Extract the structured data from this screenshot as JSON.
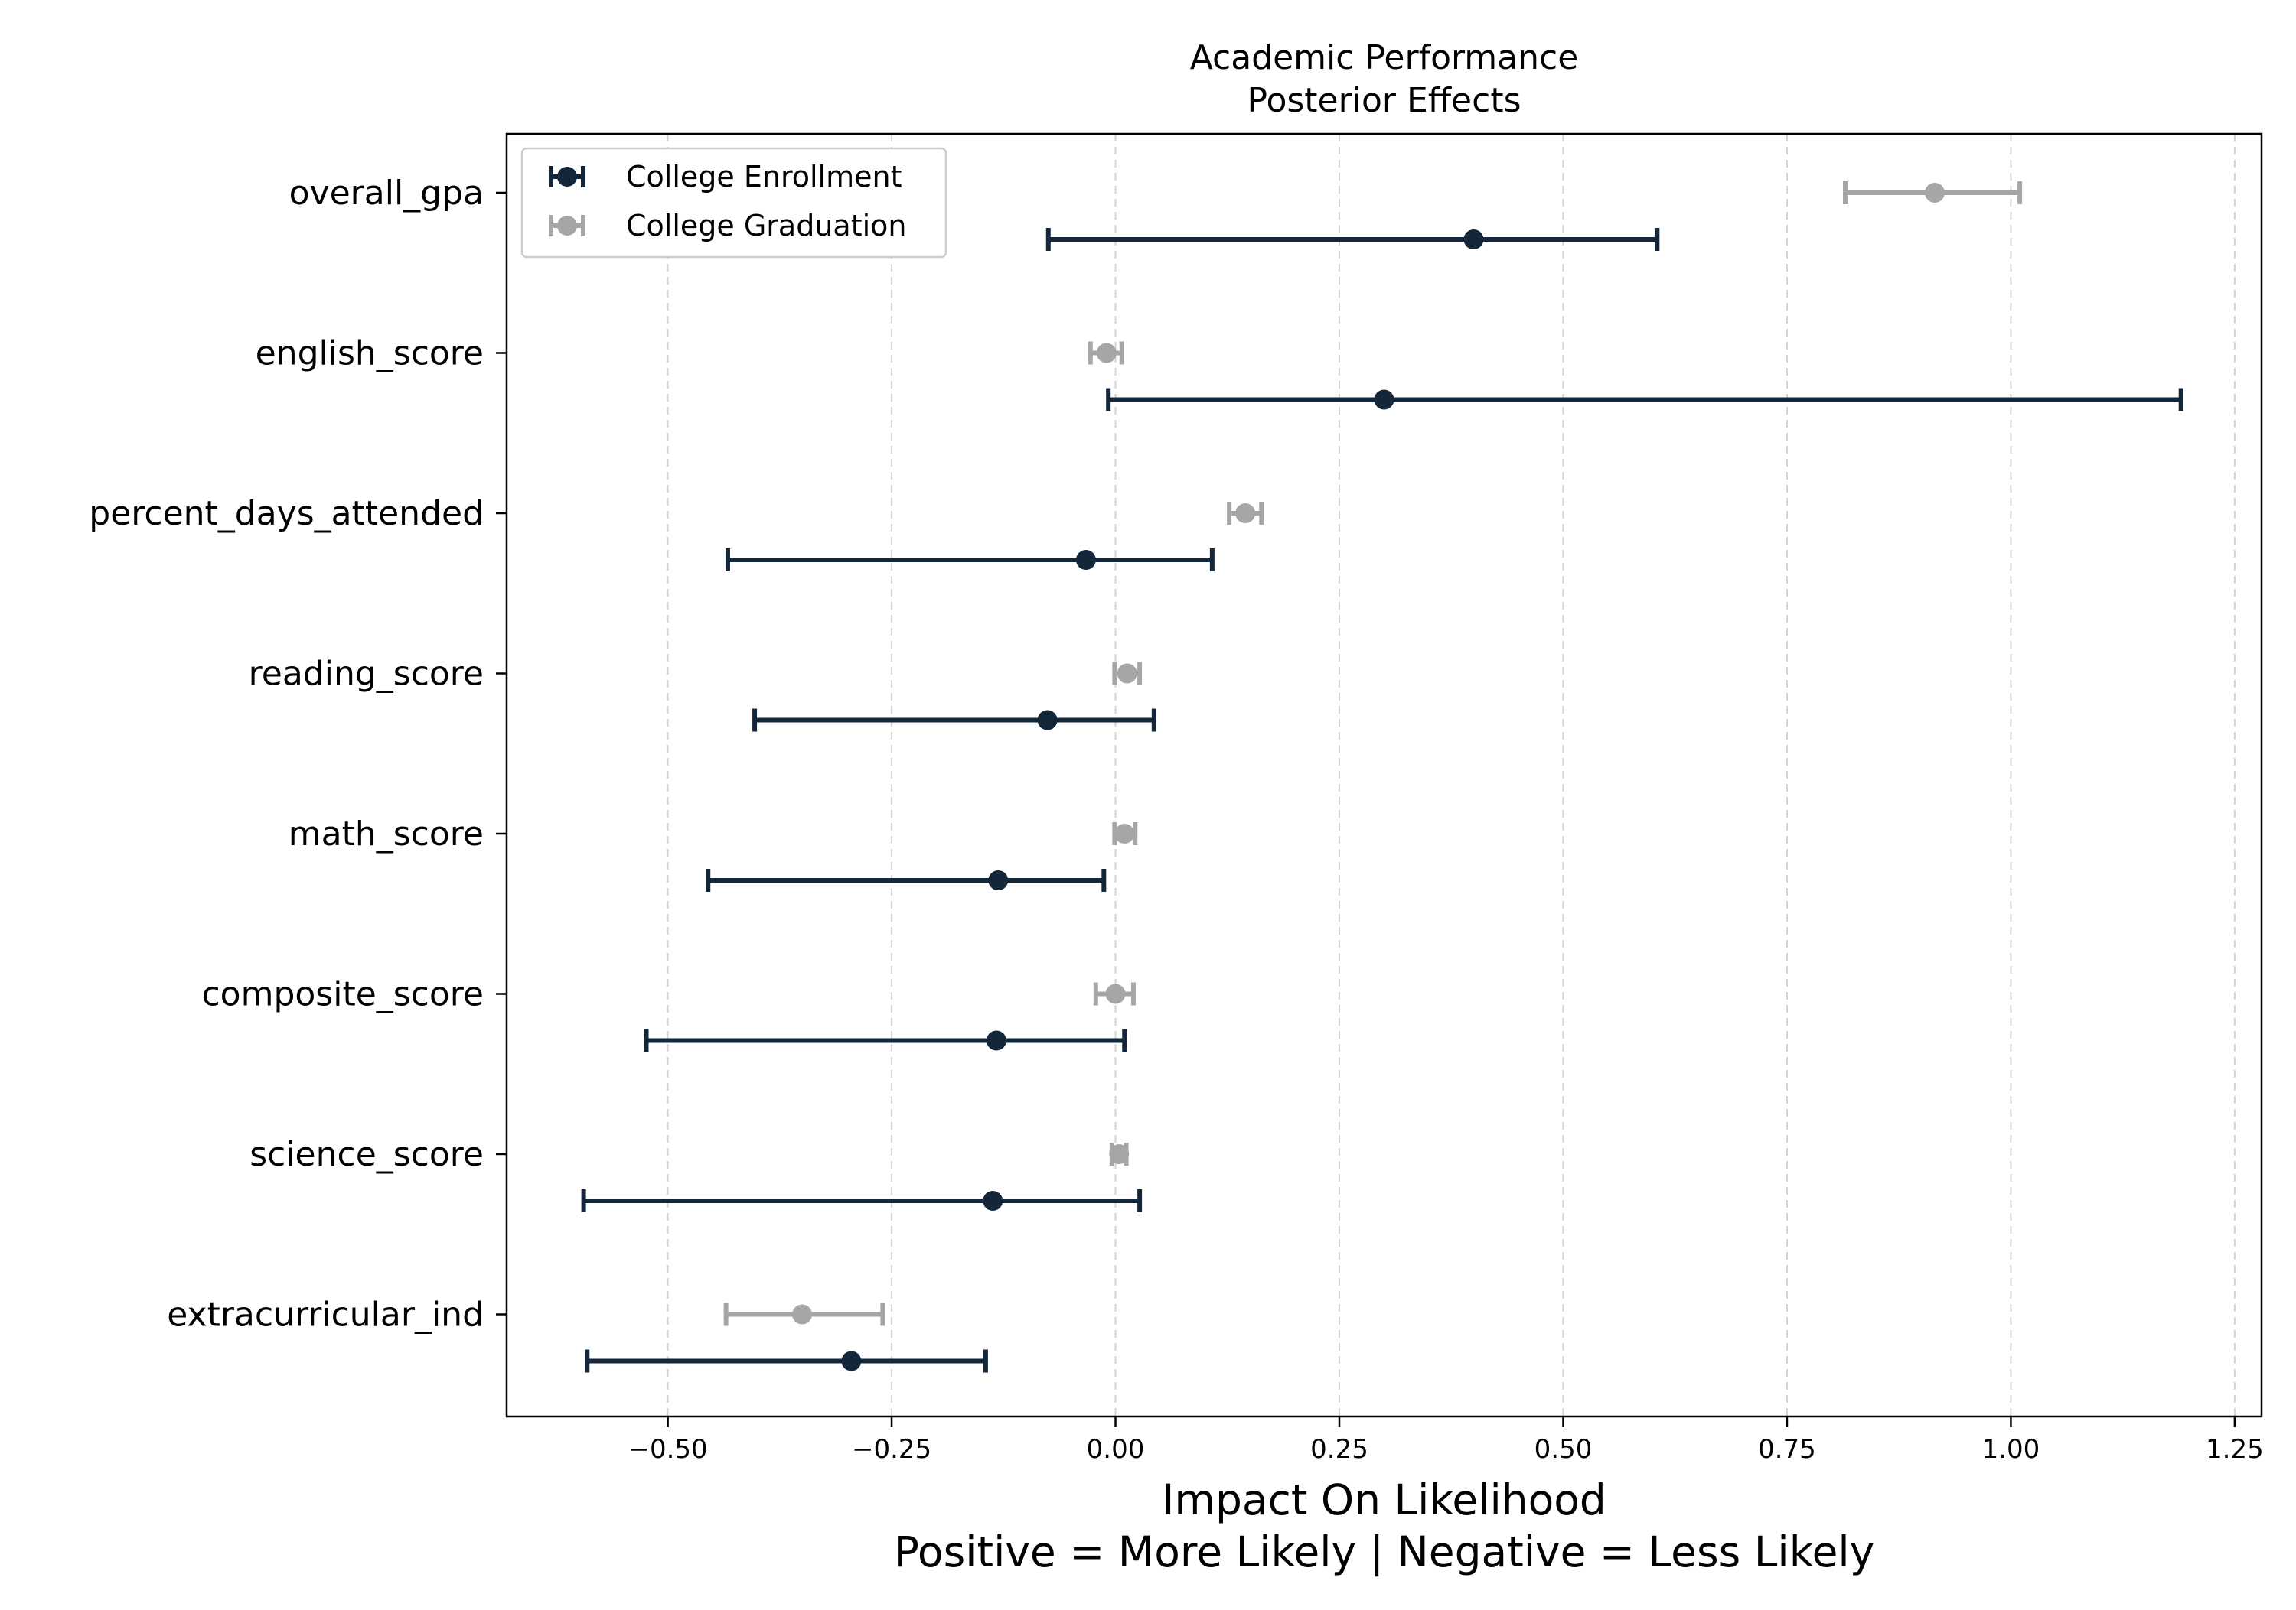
{
  "chart_data": {
    "type": "errorbar",
    "orientation": "horizontal",
    "title_lines": [
      "Academic Performance",
      "Posterior Effects"
    ],
    "xlabel_lines": [
      "Impact On Likelihood",
      "Positive = More Likely | Negative = Less Likely"
    ],
    "xlim": [
      -0.68,
      1.28
    ],
    "xticks": [
      -0.5,
      -0.25,
      0.0,
      0.25,
      0.5,
      0.75,
      1.0,
      1.25
    ],
    "xtick_labels": [
      "−0.50",
      "−0.25",
      "0.00",
      "0.25",
      "0.50",
      "0.75",
      "1.00",
      "1.25"
    ],
    "grid": {
      "x": true,
      "y": false,
      "style": "dashed",
      "color": "#d3d3d3"
    },
    "legend": {
      "position": "upper-left"
    },
    "categories": [
      "overall_gpa",
      "english_score",
      "percent_days_attended",
      "reading_score",
      "math_score",
      "composite_score",
      "science_score",
      "extracurricular_ind"
    ],
    "series": [
      {
        "name": "College Enrollment",
        "color": "#13263a",
        "points": [
          {
            "category": "overall_gpa",
            "mean": 0.4,
            "low": -0.075,
            "high": 0.605
          },
          {
            "category": "english_score",
            "mean": 0.3,
            "low": -0.008,
            "high": 1.19
          },
          {
            "category": "percent_days_attended",
            "mean": -0.033,
            "low": -0.433,
            "high": 0.108
          },
          {
            "category": "reading_score",
            "mean": -0.076,
            "low": -0.403,
            "high": 0.043
          },
          {
            "category": "math_score",
            "mean": -0.131,
            "low": -0.455,
            "high": -0.013
          },
          {
            "category": "composite_score",
            "mean": -0.133,
            "low": -0.524,
            "high": 0.01
          },
          {
            "category": "science_score",
            "mean": -0.137,
            "low": -0.594,
            "high": 0.027
          },
          {
            "category": "extracurricular_ind",
            "mean": -0.295,
            "low": -0.59,
            "high": -0.145
          }
        ]
      },
      {
        "name": "College Graduation",
        "color": "#a6a6a6",
        "points": [
          {
            "category": "overall_gpa",
            "mean": 0.915,
            "low": 0.815,
            "high": 1.01
          },
          {
            "category": "english_score",
            "mean": -0.01,
            "low": -0.028,
            "high": 0.007
          },
          {
            "category": "percent_days_attended",
            "mean": 0.145,
            "low": 0.127,
            "high": 0.163
          },
          {
            "category": "reading_score",
            "mean": 0.013,
            "low": -0.001,
            "high": 0.027
          },
          {
            "category": "math_score",
            "mean": 0.01,
            "low": -0.001,
            "high": 0.022
          },
          {
            "category": "composite_score",
            "mean": 0.0,
            "low": -0.022,
            "high": 0.02
          },
          {
            "category": "science_score",
            "mean": 0.004,
            "low": -0.004,
            "high": 0.012
          },
          {
            "category": "extracurricular_ind",
            "mean": -0.35,
            "low": -0.435,
            "high": -0.26
          }
        ]
      }
    ]
  }
}
